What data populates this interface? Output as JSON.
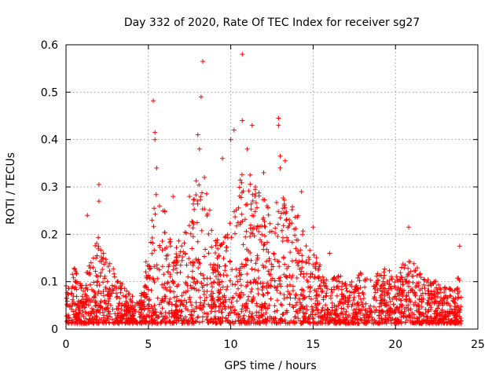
{
  "chart_data": {
    "type": "scatter",
    "title": "Day 332 of 2020, Rate Of TEC Index for receiver sg27",
    "xlabel": "GPS time / hours",
    "ylabel": "ROTI / TECUs",
    "xlim": [
      0,
      25
    ],
    "ylim": [
      0,
      0.6
    ],
    "xticks": [
      0,
      5,
      10,
      15,
      20,
      25
    ],
    "yticks": [
      0,
      0.1,
      0.2,
      0.3,
      0.4,
      0.5,
      0.6
    ],
    "xtick_labels": [
      "0",
      "5",
      "10",
      "15",
      "20",
      "25"
    ],
    "ytick_labels": [
      "0",
      "0.1",
      "0.2",
      "0.3",
      "0.4",
      "0.5",
      "0.6"
    ],
    "grid": true,
    "marker": "+",
    "color": "#ff0000",
    "envelope": {
      "x": [
        0,
        0.5,
        1,
        1.5,
        2,
        2.5,
        3,
        3.5,
        4,
        4.5,
        5,
        5.5,
        6,
        6.5,
        7,
        7.5,
        8,
        8.5,
        9,
        9.5,
        10,
        10.5,
        11,
        11.5,
        12,
        12.5,
        13,
        13.5,
        14,
        14.5,
        15,
        15.5,
        16,
        16.5,
        17,
        17.5,
        18,
        18.5,
        19,
        19.5,
        20,
        20.5,
        21,
        21.5,
        22,
        22.5,
        23,
        23.5,
        24
      ],
      "y": [
        0.1,
        0.13,
        0.09,
        0.15,
        0.2,
        0.15,
        0.12,
        0.09,
        0.07,
        0.06,
        0.18,
        0.3,
        0.25,
        0.17,
        0.2,
        0.23,
        0.35,
        0.3,
        0.22,
        0.18,
        0.25,
        0.32,
        0.35,
        0.3,
        0.28,
        0.26,
        0.3,
        0.27,
        0.25,
        0.2,
        0.17,
        0.13,
        0.1,
        0.12,
        0.1,
        0.1,
        0.13,
        0.11,
        0.12,
        0.13,
        0.12,
        0.14,
        0.15,
        0.13,
        0.11,
        0.1,
        0.09,
        0.1,
        0.13
      ]
    },
    "peaks": [
      {
        "x": 2.0,
        "y": 0.305
      },
      {
        "x": 2.0,
        "y": 0.27
      },
      {
        "x": 1.3,
        "y": 0.24
      },
      {
        "x": 5.3,
        "y": 0.482
      },
      {
        "x": 5.4,
        "y": 0.415
      },
      {
        "x": 5.4,
        "y": 0.4
      },
      {
        "x": 5.5,
        "y": 0.34
      },
      {
        "x": 6.5,
        "y": 0.28
      },
      {
        "x": 7.5,
        "y": 0.28
      },
      {
        "x": 8.0,
        "y": 0.41
      },
      {
        "x": 8.1,
        "y": 0.38
      },
      {
        "x": 8.3,
        "y": 0.565
      },
      {
        "x": 8.2,
        "y": 0.49
      },
      {
        "x": 8.4,
        "y": 0.32
      },
      {
        "x": 9.5,
        "y": 0.36
      },
      {
        "x": 10.0,
        "y": 0.4
      },
      {
        "x": 10.2,
        "y": 0.42
      },
      {
        "x": 10.7,
        "y": 0.58
      },
      {
        "x": 10.7,
        "y": 0.44
      },
      {
        "x": 11.0,
        "y": 0.38
      },
      {
        "x": 11.3,
        "y": 0.43
      },
      {
        "x": 11.5,
        "y": 0.3
      },
      {
        "x": 12.0,
        "y": 0.33
      },
      {
        "x": 12.9,
        "y": 0.445
      },
      {
        "x": 12.9,
        "y": 0.43
      },
      {
        "x": 13.0,
        "y": 0.365
      },
      {
        "x": 13.0,
        "y": 0.34
      },
      {
        "x": 13.3,
        "y": 0.355
      },
      {
        "x": 14.3,
        "y": 0.29
      },
      {
        "x": 15.0,
        "y": 0.215
      },
      {
        "x": 16.0,
        "y": 0.16
      },
      {
        "x": 20.8,
        "y": 0.215
      },
      {
        "x": 23.9,
        "y": 0.175
      }
    ]
  }
}
